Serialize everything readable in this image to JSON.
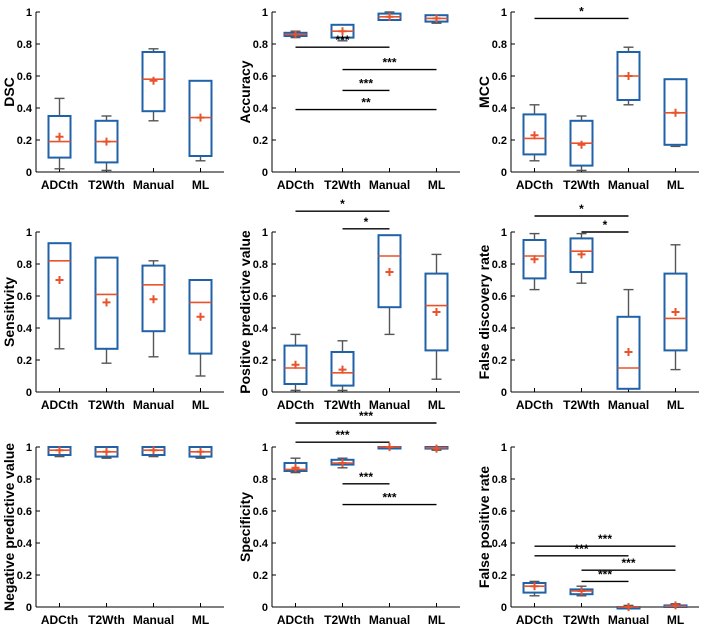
{
  "colors": {
    "box": "#1f62a8",
    "median": "#e8532b",
    "mean": "#e8532b",
    "whisker": "#555555",
    "axis": "#000000"
  },
  "chart_data": [
    {
      "type": "box",
      "ylabel": "DSC",
      "ylim": [
        0,
        1
      ],
      "yticks": [
        "0",
        "0.2",
        "0.4",
        "0.6",
        "0.8",
        "1"
      ],
      "categories": [
        "ADCth",
        "T2Wth",
        "Manual",
        "ML"
      ],
      "boxes": [
        {
          "whislo": 0.02,
          "q1": 0.09,
          "med": 0.19,
          "q3": 0.35,
          "whishi": 0.46,
          "mean": 0.22
        },
        {
          "whislo": 0.01,
          "q1": 0.06,
          "med": 0.19,
          "q3": 0.32,
          "whishi": 0.35,
          "mean": 0.19
        },
        {
          "whislo": 0.32,
          "q1": 0.38,
          "med": 0.58,
          "q3": 0.75,
          "whishi": 0.77,
          "mean": 0.57
        },
        {
          "whislo": 0.07,
          "q1": 0.1,
          "med": 0.34,
          "q3": 0.57,
          "whishi": 0.57,
          "mean": 0.34
        }
      ],
      "sig": []
    },
    {
      "type": "box",
      "ylabel": "Accuracy",
      "ylim": [
        0,
        1
      ],
      "yticks": [
        "0",
        "0.2",
        "0.4",
        "0.6",
        "0.8",
        "1"
      ],
      "categories": [
        "ADCth",
        "T2Wth",
        "Manual",
        "ML"
      ],
      "boxes": [
        {
          "whislo": 0.84,
          "q1": 0.85,
          "med": 0.86,
          "q3": 0.87,
          "whishi": 0.88,
          "mean": 0.86
        },
        {
          "whislo": 0.82,
          "q1": 0.84,
          "med": 0.88,
          "q3": 0.92,
          "whishi": 0.92,
          "mean": 0.88
        },
        {
          "whislo": 0.95,
          "q1": 0.95,
          "med": 0.97,
          "q3": 0.99,
          "whishi": 1.0,
          "mean": 0.97
        },
        {
          "whislo": 0.93,
          "q1": 0.94,
          "med": 0.96,
          "q3": 0.98,
          "whishi": 0.98,
          "mean": 0.96
        }
      ],
      "sig": [
        {
          "from": 1,
          "to": 3,
          "y": 0.78,
          "label": "***"
        },
        {
          "from": 2,
          "to": 4,
          "y": 0.64,
          "label": "***"
        },
        {
          "from": 2,
          "to": 3,
          "y": 0.51,
          "label": "***"
        },
        {
          "from": 1,
          "to": 4,
          "y": 0.39,
          "label": "**"
        }
      ]
    },
    {
      "type": "box",
      "ylabel": "MCC",
      "ylim": [
        0,
        1
      ],
      "yticks": [
        "0",
        "0.2",
        "0.4",
        "0.6",
        "0.8",
        "1"
      ],
      "categories": [
        "ADCth",
        "T2Wth",
        "Manual",
        "ML"
      ],
      "boxes": [
        {
          "whislo": 0.07,
          "q1": 0.11,
          "med": 0.21,
          "q3": 0.36,
          "whishi": 0.42,
          "mean": 0.23
        },
        {
          "whislo": 0.01,
          "q1": 0.04,
          "med": 0.18,
          "q3": 0.32,
          "whishi": 0.35,
          "mean": 0.17
        },
        {
          "whislo": 0.42,
          "q1": 0.45,
          "med": 0.6,
          "q3": 0.75,
          "whishi": 0.78,
          "mean": 0.6
        },
        {
          "whislo": 0.16,
          "q1": 0.17,
          "med": 0.37,
          "q3": 0.58,
          "whishi": 0.58,
          "mean": 0.37
        }
      ],
      "sig": [
        {
          "from": 1,
          "to": 3,
          "y": 0.96,
          "label": "*"
        }
      ]
    },
    {
      "type": "box",
      "ylabel": "Sensitivity",
      "ylim": [
        0,
        1
      ],
      "yticks": [
        "0",
        "0.2",
        "0.4",
        "0.6",
        "0.8",
        "1"
      ],
      "categories": [
        "ADCth",
        "T2Wth",
        "Manual",
        "ML"
      ],
      "boxes": [
        {
          "whislo": 0.27,
          "q1": 0.46,
          "med": 0.82,
          "q3": 0.93,
          "whishi": 0.93,
          "mean": 0.7
        },
        {
          "whislo": 0.18,
          "q1": 0.27,
          "med": 0.61,
          "q3": 0.84,
          "whishi": 0.84,
          "mean": 0.56
        },
        {
          "whislo": 0.22,
          "q1": 0.38,
          "med": 0.67,
          "q3": 0.79,
          "whishi": 0.82,
          "mean": 0.58
        },
        {
          "whislo": 0.1,
          "q1": 0.24,
          "med": 0.56,
          "q3": 0.7,
          "whishi": 0.7,
          "mean": 0.47
        }
      ],
      "sig": []
    },
    {
      "type": "box",
      "ylabel": "Positive predictive value",
      "ylim": [
        0,
        1
      ],
      "yticks": [
        "0",
        "0.2",
        "0.4",
        "0.6",
        "0.8",
        "1"
      ],
      "categories": [
        "ADCth",
        "T2Wth",
        "Manual",
        "ML"
      ],
      "boxes": [
        {
          "whislo": 0.01,
          "q1": 0.05,
          "med": 0.15,
          "q3": 0.29,
          "whishi": 0.36,
          "mean": 0.17
        },
        {
          "whislo": 0.01,
          "q1": 0.04,
          "med": 0.12,
          "q3": 0.25,
          "whishi": 0.32,
          "mean": 0.14
        },
        {
          "whislo": 0.36,
          "q1": 0.53,
          "med": 0.85,
          "q3": 0.98,
          "whishi": 0.98,
          "mean": 0.75
        },
        {
          "whislo": 0.08,
          "q1": 0.26,
          "med": 0.54,
          "q3": 0.74,
          "whishi": 0.86,
          "mean": 0.5
        }
      ],
      "sig": [
        {
          "from": 1,
          "to": 3,
          "y": 1.13,
          "label": "*"
        },
        {
          "from": 2,
          "to": 3,
          "y": 1.02,
          "label": "*"
        }
      ]
    },
    {
      "type": "box",
      "ylabel": "False discovery rate",
      "ylim": [
        0,
        1
      ],
      "yticks": [
        "0",
        "0.2",
        "0.4",
        "0.6",
        "0.8",
        "1"
      ],
      "categories": [
        "ADCth",
        "T2Wth",
        "Manual",
        "ML"
      ],
      "boxes": [
        {
          "whislo": 0.64,
          "q1": 0.71,
          "med": 0.85,
          "q3": 0.95,
          "whishi": 0.99,
          "mean": 0.83
        },
        {
          "whislo": 0.68,
          "q1": 0.75,
          "med": 0.88,
          "q3": 0.96,
          "whishi": 0.99,
          "mean": 0.86
        },
        {
          "whislo": 0.02,
          "q1": 0.02,
          "med": 0.15,
          "q3": 0.47,
          "whishi": 0.64,
          "mean": 0.25
        },
        {
          "whislo": 0.14,
          "q1": 0.26,
          "med": 0.46,
          "q3": 0.74,
          "whishi": 0.92,
          "mean": 0.5
        }
      ],
      "sig": [
        {
          "from": 1,
          "to": 3,
          "y": 1.1,
          "label": "*"
        },
        {
          "from": 2,
          "to": 3,
          "y": 1.0,
          "label": "*"
        }
      ]
    },
    {
      "type": "box",
      "ylabel": "Negative predictive value",
      "ylim": [
        0,
        1
      ],
      "yticks": [
        "0",
        "0.2",
        "0.4",
        "0.6",
        "0.8",
        "1"
      ],
      "categories": [
        "ADCth",
        "T2Wth",
        "Manual",
        "ML"
      ],
      "boxes": [
        {
          "whislo": 0.94,
          "q1": 0.95,
          "med": 0.98,
          "q3": 1.0,
          "whishi": 1.0,
          "mean": 0.98
        },
        {
          "whislo": 0.93,
          "q1": 0.94,
          "med": 0.97,
          "q3": 1.0,
          "whishi": 1.0,
          "mean": 0.97
        },
        {
          "whislo": 0.94,
          "q1": 0.95,
          "med": 0.98,
          "q3": 1.0,
          "whishi": 1.0,
          "mean": 0.98
        },
        {
          "whislo": 0.93,
          "q1": 0.94,
          "med": 0.97,
          "q3": 1.0,
          "whishi": 1.0,
          "mean": 0.97
        }
      ],
      "sig": []
    },
    {
      "type": "box",
      "ylabel": "Specificity",
      "ylim": [
        0,
        1
      ],
      "yticks": [
        "0",
        "0.2",
        "0.4",
        "0.6",
        "0.8",
        "1"
      ],
      "categories": [
        "ADCth",
        "T2Wth",
        "Manual",
        "ML"
      ],
      "boxes": [
        {
          "whislo": 0.84,
          "q1": 0.85,
          "med": 0.86,
          "q3": 0.9,
          "whishi": 0.93,
          "mean": 0.87
        },
        {
          "whislo": 0.87,
          "q1": 0.89,
          "med": 0.9,
          "q3": 0.92,
          "whishi": 0.93,
          "mean": 0.9
        },
        {
          "whislo": 0.99,
          "q1": 0.995,
          "med": 1.0,
          "q3": 1.0,
          "whishi": 1.0,
          "mean": 1.0
        },
        {
          "whislo": 0.98,
          "q1": 0.99,
          "med": 0.995,
          "q3": 1.0,
          "whishi": 1.0,
          "mean": 0.99
        }
      ],
      "sig": [
        {
          "from": 1,
          "to": 4,
          "y": 1.15,
          "label": "***"
        },
        {
          "from": 1,
          "to": 3,
          "y": 1.03,
          "label": "***"
        },
        {
          "from": 2,
          "to": 3,
          "y": 0.77,
          "label": "***"
        },
        {
          "from": 2,
          "to": 4,
          "y": 0.64,
          "label": "***"
        }
      ]
    },
    {
      "type": "box",
      "ylabel": "False positive rate",
      "ylim": [
        0,
        1
      ],
      "yticks": [
        "0",
        "0.2",
        "0.4",
        "0.6",
        "0.8",
        "1"
      ],
      "categories": [
        "ADCth",
        "T2Wth",
        "Manual",
        "ML"
      ],
      "boxes": [
        {
          "whislo": 0.07,
          "q1": 0.09,
          "med": 0.13,
          "q3": 0.15,
          "whishi": 0.16,
          "mean": 0.13
        },
        {
          "whislo": 0.07,
          "q1": 0.08,
          "med": 0.1,
          "q3": 0.11,
          "whishi": 0.13,
          "mean": 0.1
        },
        {
          "whislo": 0.0,
          "q1": 0.0,
          "med": 0.0,
          "q3": 0.0,
          "whishi": 0.01,
          "mean": 0.0
        },
        {
          "whislo": 0.0,
          "q1": 0.0,
          "med": 0.005,
          "q3": 0.01,
          "whishi": 0.02,
          "mean": 0.01
        }
      ],
      "sig": [
        {
          "from": 1,
          "to": 4,
          "y": 0.38,
          "label": "***"
        },
        {
          "from": 1,
          "to": 3,
          "y": 0.32,
          "label": "***"
        },
        {
          "from": 2,
          "to": 4,
          "y": 0.23,
          "label": "***"
        },
        {
          "from": 2,
          "to": 3,
          "y": 0.16,
          "label": "***"
        }
      ]
    }
  ]
}
